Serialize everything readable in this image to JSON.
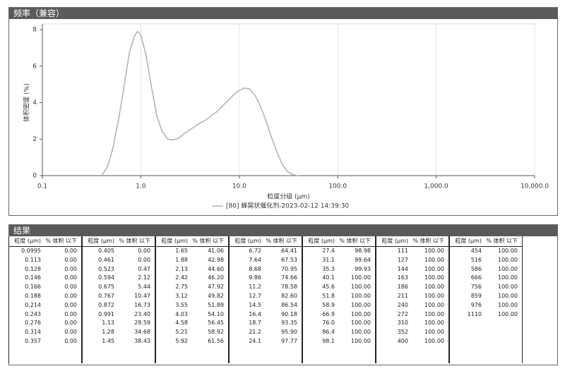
{
  "panel_title": "频率（兼容）",
  "chart_data": {
    "type": "line",
    "x_label": "粒度分级 (μm)",
    "y_label": "体积密度 (%)",
    "xscale": "log",
    "xlim": [
      0.1,
      10000
    ],
    "ylim": [
      0,
      8
    ],
    "grid": true,
    "xticks": [
      0.1,
      {
        "value": 1,
        "label": "1.0"
      },
      {
        "value": 10,
        "label": "10.0"
      },
      {
        "value": 100,
        "label": "100.0"
      },
      {
        "value": 1000,
        "label": "1,000.0"
      },
      {
        "value": 10000,
        "label": "10,000.0"
      }
    ],
    "yticks": [
      0,
      2,
      4,
      6,
      8
    ],
    "x": [
      0.4,
      0.46,
      0.52,
      0.6,
      0.68,
      0.77,
      0.87,
      0.93,
      1.0,
      1.13,
      1.28,
      1.45,
      1.65,
      1.88,
      2.13,
      2.42,
      2.75,
      3.12,
      3.55,
      4.03,
      4.58,
      5.21,
      5.92,
      6.72,
      7.64,
      8.68,
      9.86,
      11.2,
      12.7,
      14.5,
      16.4,
      18.7,
      21.2,
      24.1,
      27.4,
      31.1,
      35.3,
      40.1
    ],
    "series": [
      {
        "name": "[80] 蜂窝状催化剂-2023-02-12 14:39:30",
        "color": "#b4b4b4",
        "values": [
          0,
          0.5,
          1.5,
          3.2,
          5.0,
          6.8,
          7.7,
          7.9,
          7.7,
          6.6,
          4.9,
          3.3,
          2.4,
          2.0,
          1.95,
          2.05,
          2.3,
          2.5,
          2.7,
          2.9,
          3.05,
          3.3,
          3.5,
          3.8,
          4.1,
          4.4,
          4.65,
          4.8,
          4.75,
          4.4,
          3.8,
          3.0,
          2.1,
          1.3,
          0.6,
          0.2,
          0.05,
          0
        ]
      }
    ]
  },
  "results": {
    "title": "结果",
    "columns": [
      "粒度 (μm)",
      "% 体积 以下"
    ],
    "groups": [
      [
        [
          "0.0995",
          "0.00"
        ],
        [
          "0.113",
          "0.00"
        ],
        [
          "0.128",
          "0.00"
        ],
        [
          "0.146",
          "0.00"
        ],
        [
          "0.166",
          "0.00"
        ],
        [
          "0.188",
          "0.00"
        ],
        [
          "0.214",
          "0.00"
        ],
        [
          "0.243",
          "0.00"
        ],
        [
          "0.276",
          "0.00"
        ],
        [
          "0.314",
          "0.00"
        ],
        [
          "0.357",
          "0.00"
        ]
      ],
      [
        [
          "0.405",
          "0.00"
        ],
        [
          "0.461",
          "0.00"
        ],
        [
          "0.523",
          "0.47"
        ],
        [
          "0.594",
          "2.12"
        ],
        [
          "0.675",
          "5.44"
        ],
        [
          "0.767",
          "10.47"
        ],
        [
          "0.872",
          "16.73"
        ],
        [
          "0.991",
          "23.40"
        ],
        [
          "1.13",
          "29.59"
        ],
        [
          "1.28",
          "34.68"
        ],
        [
          "1.45",
          "38.43"
        ]
      ],
      [
        [
          "1.65",
          "41.06"
        ],
        [
          "1.88",
          "42.98"
        ],
        [
          "2.13",
          "44.60"
        ],
        [
          "2.42",
          "46.20"
        ],
        [
          "2.75",
          "47.92"
        ],
        [
          "3.12",
          "49.82"
        ],
        [
          "3.55",
          "51.89"
        ],
        [
          "4.03",
          "54.10"
        ],
        [
          "4.58",
          "56.45"
        ],
        [
          "5.21",
          "58.92"
        ],
        [
          "5.92",
          "61.56"
        ]
      ],
      [
        [
          "6.72",
          "64.41"
        ],
        [
          "7.64",
          "67.53"
        ],
        [
          "8.68",
          "70.95"
        ],
        [
          "9.86",
          "74.66"
        ],
        [
          "11.2",
          "78.58"
        ],
        [
          "12.7",
          "82.60"
        ],
        [
          "14.5",
          "86.54"
        ],
        [
          "16.4",
          "90.18"
        ],
        [
          "18.7",
          "93.35"
        ],
        [
          "21.2",
          "95.90"
        ],
        [
          "24.1",
          "97.77"
        ]
      ],
      [
        [
          "27.4",
          "98.98"
        ],
        [
          "31.1",
          "99.64"
        ],
        [
          "35.3",
          "99.93"
        ],
        [
          "40.1",
          "100.00"
        ],
        [
          "45.6",
          "100.00"
        ],
        [
          "51.8",
          "100.00"
        ],
        [
          "58.9",
          "100.00"
        ],
        [
          "66.9",
          "100.00"
        ],
        [
          "76.0",
          "100.00"
        ],
        [
          "86.4",
          "100.00"
        ],
        [
          "98.1",
          "100.00"
        ]
      ],
      [
        [
          "111",
          "100.00"
        ],
        [
          "127",
          "100.00"
        ],
        [
          "144",
          "100.00"
        ],
        [
          "163",
          "100.00"
        ],
        [
          "186",
          "100.00"
        ],
        [
          "211",
          "100.00"
        ],
        [
          "240",
          "100.00"
        ],
        [
          "272",
          "100.00"
        ],
        [
          "310",
          "100.00"
        ],
        [
          "352",
          "100.00"
        ],
        [
          "400",
          "100.00"
        ]
      ],
      [
        [
          "454",
          "100.00"
        ],
        [
          "516",
          "100.00"
        ],
        [
          "586",
          "100.00"
        ],
        [
          "666",
          "100.00"
        ],
        [
          "756",
          "100.00"
        ],
        [
          "859",
          "100.00"
        ],
        [
          "976",
          "100.00"
        ],
        [
          "1110",
          "100.00"
        ]
      ]
    ]
  }
}
